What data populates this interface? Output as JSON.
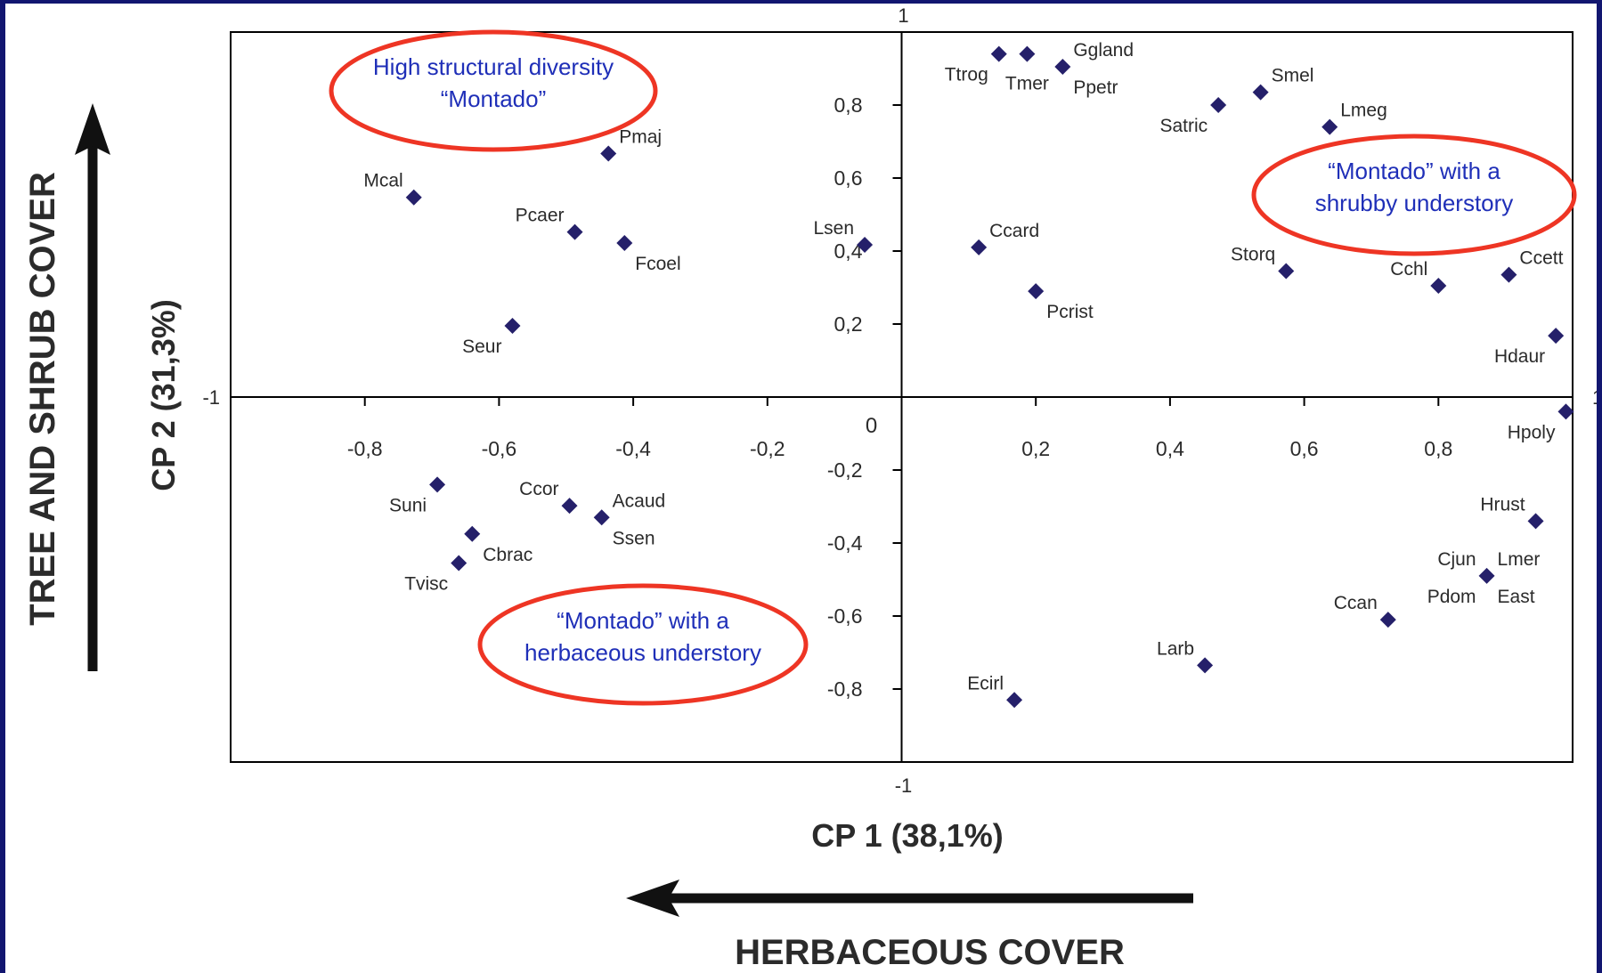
{
  "colors": {
    "background_border": "#121670",
    "point": "#25206a",
    "ellipse": "#ee3524",
    "annotation_text": "#1f2fb8",
    "axis": "#000000",
    "label": "#2b2b2b"
  },
  "chart_data": {
    "type": "scatter",
    "xlabel": "CP 1 (38,1%)",
    "ylabel": "CP 2 (31,3%)",
    "xlim": [
      -1,
      1
    ],
    "ylim": [
      -1,
      1
    ],
    "xticks": [
      {
        "value": -0.8,
        "label": "-0,8"
      },
      {
        "value": -0.6,
        "label": "-0,6"
      },
      {
        "value": -0.4,
        "label": "-0,4"
      },
      {
        "value": -0.2,
        "label": "-0,2"
      },
      {
        "value": 0.2,
        "label": "0,2"
      },
      {
        "value": 0.4,
        "label": "0,4"
      },
      {
        "value": 0.6,
        "label": "0,6"
      },
      {
        "value": 0.8,
        "label": "0,8"
      }
    ],
    "yticks": [
      {
        "value": 0.8,
        "label": "0,8"
      },
      {
        "value": 0.6,
        "label": "0,6"
      },
      {
        "value": 0.4,
        "label": "0,4"
      },
      {
        "value": 0.2,
        "label": "0,2"
      },
      {
        "value": -0.2,
        "label": "-0,2"
      },
      {
        "value": -0.4,
        "label": "-0,4"
      },
      {
        "value": -0.6,
        "label": "-0,6"
      },
      {
        "value": -0.8,
        "label": "-0,8"
      }
    ],
    "axis_end_labels": {
      "top": "1",
      "bottom": "-1",
      "left": "-1",
      "right": "1",
      "origin": "0"
    },
    "points": [
      {
        "label": "Ttrog",
        "x": 0.145,
        "y": 0.94,
        "pos": "below-left"
      },
      {
        "label": "Tmer",
        "x": 0.187,
        "y": 0.94,
        "pos": "below"
      },
      {
        "label": "Ggland",
        "x": 0.24,
        "y": 0.905,
        "pos": "above-right"
      },
      {
        "label": "Ppetr",
        "x": 0.24,
        "y": 0.905,
        "pos": "below-right"
      },
      {
        "label": "Smel",
        "x": 0.535,
        "y": 0.835,
        "pos": "above-right"
      },
      {
        "label": "Satric",
        "x": 0.472,
        "y": 0.8,
        "pos": "below-left"
      },
      {
        "label": "Lmeg",
        "x": 0.638,
        "y": 0.74,
        "pos": "above-right"
      },
      {
        "label": "Pmaj",
        "x": -0.437,
        "y": 0.667,
        "pos": "above-right"
      },
      {
        "label": "Mcal",
        "x": -0.727,
        "y": 0.547,
        "pos": "above-left"
      },
      {
        "label": "Pcaer",
        "x": -0.487,
        "y": 0.452,
        "pos": "above-left"
      },
      {
        "label": "Fcoel",
        "x": -0.413,
        "y": 0.422,
        "pos": "below-right"
      },
      {
        "label": "Lsen",
        "x": -0.055,
        "y": 0.417,
        "pos": "above-left"
      },
      {
        "label": "Ccard",
        "x": 0.115,
        "y": 0.41,
        "pos": "above-right"
      },
      {
        "label": "Storq",
        "x": 0.573,
        "y": 0.345,
        "pos": "above-left"
      },
      {
        "label": "Ccett",
        "x": 0.905,
        "y": 0.335,
        "pos": "above-right"
      },
      {
        "label": "Cchl",
        "x": 0.8,
        "y": 0.305,
        "pos": "above-left"
      },
      {
        "label": "Pcrist",
        "x": 0.2,
        "y": 0.29,
        "pos": "below-right"
      },
      {
        "label": "Seur",
        "x": -0.58,
        "y": 0.195,
        "pos": "below-left"
      },
      {
        "label": "Hdaur",
        "x": 0.975,
        "y": 0.168,
        "pos": "below-left"
      },
      {
        "label": "Hpoly",
        "x": 0.99,
        "y": -0.04,
        "pos": "below-left"
      },
      {
        "label": "Suni",
        "x": -0.692,
        "y": -0.24,
        "pos": "below-left"
      },
      {
        "label": "Ccor",
        "x": -0.495,
        "y": -0.298,
        "pos": "above-left"
      },
      {
        "label": "Acaud",
        "x": -0.447,
        "y": -0.33,
        "pos": "above-right"
      },
      {
        "label": "Hrust",
        "x": 0.945,
        "y": -0.34,
        "pos": "above-left"
      },
      {
        "label": "Cbrac",
        "x": -0.64,
        "y": -0.375,
        "pos": "below-right"
      },
      {
        "label": "Ssen",
        "x": -0.447,
        "y": -0.33,
        "pos": "below-right"
      },
      {
        "label": "Tvisc",
        "x": -0.66,
        "y": -0.455,
        "pos": "below-left"
      },
      {
        "label": "Cjun",
        "x": 0.872,
        "y": -0.49,
        "pos": "above-left"
      },
      {
        "label": "Lmer",
        "x": 0.872,
        "y": -0.49,
        "pos": "above-right"
      },
      {
        "label": "Pdom",
        "x": 0.872,
        "y": -0.49,
        "pos": "below-left"
      },
      {
        "label": "East",
        "x": 0.872,
        "y": -0.49,
        "pos": "below-right"
      },
      {
        "label": "Ccan",
        "x": 0.725,
        "y": -0.61,
        "pos": "above-left"
      },
      {
        "label": "Larb",
        "x": 0.452,
        "y": -0.735,
        "pos": "above-left"
      },
      {
        "label": "Ecirl",
        "x": 0.168,
        "y": -0.83,
        "pos": "above-left"
      }
    ],
    "annotations": [
      {
        "lines": [
          "High structural diversity",
          "“Montado”"
        ]
      },
      {
        "lines": [
          "“Montado” with a",
          "shrubby understory"
        ]
      },
      {
        "lines": [
          "“Montado” with a",
          "herbaceous understory"
        ]
      }
    ]
  },
  "side_labels": {
    "vertical": "TREE AND SHRUB COVER",
    "horizontal": "HERBACEOUS COVER"
  }
}
